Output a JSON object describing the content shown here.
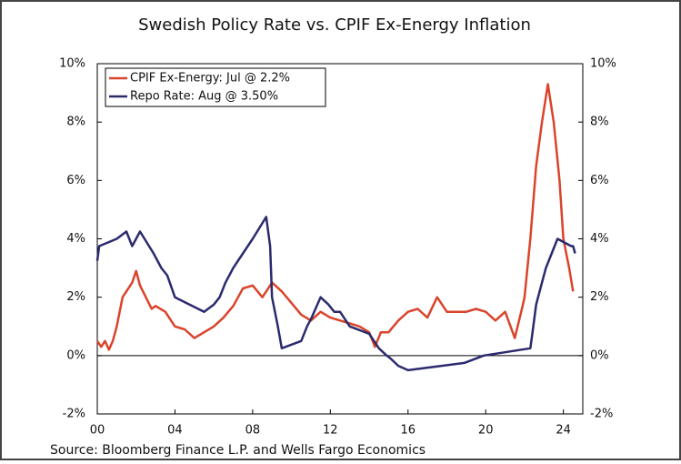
{
  "chart_data": {
    "type": "line",
    "title": "Swedish Policy Rate vs. CPIF Ex-Energy Inflation",
    "source": "Source: Bloomberg Finance L.P. and Wells Fargo Economics",
    "xlim": [
      2000,
      2025
    ],
    "xticks": [
      {
        "value": 2000,
        "label": "00"
      },
      {
        "value": 2004,
        "label": "04"
      },
      {
        "value": 2008,
        "label": "08"
      },
      {
        "value": 2012,
        "label": "12"
      },
      {
        "value": 2016,
        "label": "16"
      },
      {
        "value": 2020,
        "label": "20"
      },
      {
        "value": 2024,
        "label": "24"
      }
    ],
    "ylim": [
      -2,
      10
    ],
    "yticks": [
      {
        "value": -2,
        "label": "-2%"
      },
      {
        "value": 0,
        "label": "0%"
      },
      {
        "value": 2,
        "label": "2%"
      },
      {
        "value": 4,
        "label": "4%"
      },
      {
        "value": 6,
        "label": "6%"
      },
      {
        "value": 8,
        "label": "8%"
      },
      {
        "value": 10,
        "label": "10%"
      }
    ],
    "y2lim": [
      -2,
      10
    ],
    "y2ticks": [
      {
        "value": -2,
        "label": "-2%"
      },
      {
        "value": 0,
        "label": "0%"
      },
      {
        "value": 2,
        "label": "2%"
      },
      {
        "value": 4,
        "label": "4%"
      },
      {
        "value": 6,
        "label": "6%"
      },
      {
        "value": 8,
        "label": "8%"
      },
      {
        "value": 10,
        "label": "10%"
      }
    ],
    "legend": "top-left",
    "series": [
      {
        "name": "CPIF Ex-Energy: Jul @ 2.2%",
        "color": "#d9442b",
        "x": [
          2000,
          2000.2,
          2000.4,
          2000.6,
          2000.8,
          2001,
          2001.3,
          2001.5,
          2001.8,
          2002,
          2002.2,
          2002.5,
          2002.8,
          2003,
          2003.5,
          2004,
          2004.5,
          2005,
          2005.5,
          2006,
          2006.5,
          2007,
          2007.5,
          2008,
          2008.5,
          2009,
          2009.5,
          2010,
          2010.5,
          2011,
          2011.5,
          2012,
          2012.5,
          2013,
          2013.5,
          2014,
          2014.3,
          2014.6,
          2015,
          2015.5,
          2016,
          2016.5,
          2017,
          2017.5,
          2018,
          2018.5,
          2019,
          2019.5,
          2020,
          2020.5,
          2021,
          2021.5,
          2021.9,
          2022,
          2022.3,
          2022.6,
          2022.9,
          2023.2,
          2023.5,
          2023.8,
          2024,
          2024.3,
          2024.5
        ],
        "values": [
          0.5,
          0.3,
          0.5,
          0.2,
          0.5,
          1.0,
          2.0,
          2.2,
          2.5,
          2.9,
          2.4,
          2.0,
          1.6,
          1.7,
          1.5,
          1.0,
          0.9,
          0.6,
          0.8,
          1.0,
          1.3,
          1.7,
          2.3,
          2.4,
          2.0,
          2.5,
          2.2,
          1.8,
          1.4,
          1.2,
          1.5,
          1.3,
          1.2,
          1.1,
          1.0,
          0.8,
          0.3,
          0.8,
          0.8,
          1.2,
          1.5,
          1.6,
          1.3,
          2.0,
          1.5,
          1.5,
          1.5,
          1.6,
          1.5,
          1.2,
          1.5,
          0.6,
          1.7,
          2.0,
          4.0,
          6.5,
          8.0,
          9.3,
          8.0,
          6.0,
          4.0,
          3.0,
          2.2
        ]
      },
      {
        "name": "Repo Rate: Aug @ 3.50%",
        "color": "#2b2a6e",
        "x": [
          2000,
          2000.1,
          2001,
          2001.5,
          2001.8,
          2002.2,
          2002.9,
          2003.3,
          2003.6,
          2004,
          2005.5,
          2006,
          2006.3,
          2006.6,
          2007,
          2007.5,
          2008,
          2008.7,
          2008.9,
          2009,
          2009.3,
          2009.5,
          2010.5,
          2010.8,
          2011,
          2011.5,
          2011.9,
          2012.2,
          2012.5,
          2013,
          2014,
          2014.5,
          2014.9,
          2015.1,
          2015.5,
          2016,
          2018.9,
          2019.9,
          2022.3,
          2022.4,
          2022.6,
          2022.9,
          2023.1,
          2023.4,
          2023.7,
          2024.4,
          2024.5,
          2024.6
        ],
        "values": [
          3.25,
          3.75,
          4.0,
          4.25,
          3.75,
          4.25,
          3.5,
          3.0,
          2.75,
          2.0,
          1.5,
          1.75,
          2.0,
          2.5,
          3.0,
          3.5,
          4.0,
          4.75,
          3.75,
          2.0,
          1.0,
          0.25,
          0.5,
          1.0,
          1.25,
          2.0,
          1.75,
          1.5,
          1.5,
          1.0,
          0.75,
          0.25,
          0.0,
          -0.1,
          -0.35,
          -0.5,
          -0.25,
          0.0,
          0.25,
          0.75,
          1.75,
          2.5,
          3.0,
          3.5,
          4.0,
          3.75,
          3.75,
          3.5
        ]
      }
    ]
  }
}
